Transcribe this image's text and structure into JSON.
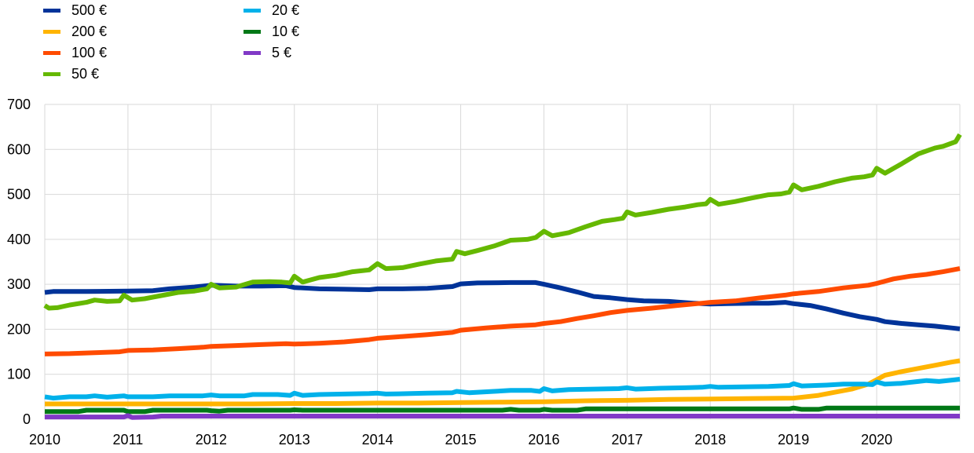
{
  "chart_data": {
    "type": "line",
    "title": "",
    "xlabel": "",
    "ylabel": "",
    "xlim": [
      2010,
      2021.0
    ],
    "ylim": [
      0,
      700
    ],
    "yticks": [
      0,
      100,
      200,
      300,
      400,
      500,
      600,
      700
    ],
    "xticks": [
      "2010",
      "2011",
      "2012",
      "2013",
      "2014",
      "2015",
      "2016",
      "2017",
      "2018",
      "2019",
      "2020"
    ],
    "grid": true,
    "legend_position": "top-left",
    "series": [
      {
        "name": "500 €",
        "color": "#003399",
        "points": [
          [
            2010.0,
            282
          ],
          [
            2010.1,
            284
          ],
          [
            2010.5,
            284
          ],
          [
            2011.0,
            285
          ],
          [
            2011.3,
            286
          ],
          [
            2011.5,
            290
          ],
          [
            2011.8,
            294
          ],
          [
            2012.0,
            298
          ],
          [
            2012.3,
            296
          ],
          [
            2012.6,
            296
          ],
          [
            2012.9,
            297
          ],
          [
            2013.0,
            293
          ],
          [
            2013.3,
            290
          ],
          [
            2013.6,
            289
          ],
          [
            2013.9,
            288
          ],
          [
            2014.0,
            290
          ],
          [
            2014.3,
            290
          ],
          [
            2014.6,
            291
          ],
          [
            2014.9,
            295
          ],
          [
            2015.0,
            301
          ],
          [
            2015.2,
            303
          ],
          [
            2015.6,
            304
          ],
          [
            2015.9,
            304
          ],
          [
            2016.0,
            300
          ],
          [
            2016.2,
            292
          ],
          [
            2016.4,
            283
          ],
          [
            2016.6,
            273
          ],
          [
            2016.8,
            270
          ],
          [
            2017.0,
            266
          ],
          [
            2017.2,
            263
          ],
          [
            2017.5,
            262
          ],
          [
            2017.8,
            258
          ],
          [
            2018.0,
            256
          ],
          [
            2018.2,
            257
          ],
          [
            2018.5,
            258
          ],
          [
            2018.7,
            258
          ],
          [
            2018.9,
            260
          ],
          [
            2019.0,
            257
          ],
          [
            2019.2,
            253
          ],
          [
            2019.4,
            245
          ],
          [
            2019.6,
            236
          ],
          [
            2019.8,
            228
          ],
          [
            2020.0,
            222
          ],
          [
            2020.1,
            217
          ],
          [
            2020.3,
            213
          ],
          [
            2020.5,
            210
          ],
          [
            2020.7,
            207
          ],
          [
            2020.9,
            203
          ],
          [
            2021.0,
            201
          ]
        ]
      },
      {
        "name": "200 €",
        "color": "#FFB400",
        "points": [
          [
            2010.0,
            34
          ],
          [
            2010.5,
            34
          ],
          [
            2011.0,
            34
          ],
          [
            2011.5,
            34
          ],
          [
            2012.0,
            34
          ],
          [
            2012.5,
            34
          ],
          [
            2013.0,
            35
          ],
          [
            2013.5,
            35
          ],
          [
            2014.0,
            36
          ],
          [
            2014.5,
            36
          ],
          [
            2015.0,
            37
          ],
          [
            2015.5,
            38
          ],
          [
            2016.0,
            39
          ],
          [
            2016.5,
            41
          ],
          [
            2017.0,
            42
          ],
          [
            2017.5,
            44
          ],
          [
            2018.0,
            45
          ],
          [
            2018.5,
            46
          ],
          [
            2019.0,
            47
          ],
          [
            2019.3,
            53
          ],
          [
            2019.5,
            60
          ],
          [
            2019.7,
            67
          ],
          [
            2019.9,
            78
          ],
          [
            2020.0,
            88
          ],
          [
            2020.1,
            98
          ],
          [
            2020.3,
            106
          ],
          [
            2020.5,
            113
          ],
          [
            2020.7,
            120
          ],
          [
            2020.9,
            127
          ],
          [
            2021.0,
            130
          ]
        ]
      },
      {
        "name": "100 €",
        "color": "#FF4B00",
        "points": [
          [
            2010.0,
            145
          ],
          [
            2010.3,
            146
          ],
          [
            2010.6,
            148
          ],
          [
            2010.9,
            150
          ],
          [
            2011.0,
            153
          ],
          [
            2011.3,
            154
          ],
          [
            2011.6,
            157
          ],
          [
            2011.9,
            160
          ],
          [
            2012.0,
            162
          ],
          [
            2012.3,
            164
          ],
          [
            2012.6,
            166
          ],
          [
            2012.9,
            168
          ],
          [
            2013.0,
            167
          ],
          [
            2013.3,
            169
          ],
          [
            2013.6,
            172
          ],
          [
            2013.9,
            177
          ],
          [
            2014.0,
            180
          ],
          [
            2014.3,
            184
          ],
          [
            2014.6,
            188
          ],
          [
            2014.9,
            193
          ],
          [
            2015.0,
            198
          ],
          [
            2015.3,
            203
          ],
          [
            2015.6,
            207
          ],
          [
            2015.9,
            210
          ],
          [
            2016.0,
            213
          ],
          [
            2016.2,
            217
          ],
          [
            2016.4,
            224
          ],
          [
            2016.6,
            230
          ],
          [
            2016.8,
            237
          ],
          [
            2017.0,
            242
          ],
          [
            2017.3,
            247
          ],
          [
            2017.6,
            253
          ],
          [
            2017.9,
            258
          ],
          [
            2018.0,
            260
          ],
          [
            2018.3,
            263
          ],
          [
            2018.6,
            270
          ],
          [
            2018.9,
            276
          ],
          [
            2019.0,
            279
          ],
          [
            2019.3,
            284
          ],
          [
            2019.6,
            292
          ],
          [
            2019.9,
            298
          ],
          [
            2020.0,
            302
          ],
          [
            2020.2,
            312
          ],
          [
            2020.4,
            318
          ],
          [
            2020.6,
            322
          ],
          [
            2020.8,
            328
          ],
          [
            2021.0,
            335
          ]
        ]
      },
      {
        "name": "50 €",
        "color": "#65B800",
        "points": [
          [
            2010.0,
            253
          ],
          [
            2010.05,
            247
          ],
          [
            2010.15,
            248
          ],
          [
            2010.3,
            254
          ],
          [
            2010.5,
            260
          ],
          [
            2010.6,
            265
          ],
          [
            2010.75,
            262
          ],
          [
            2010.9,
            263
          ],
          [
            2010.95,
            276
          ],
          [
            2011.05,
            265
          ],
          [
            2011.2,
            268
          ],
          [
            2011.4,
            275
          ],
          [
            2011.6,
            282
          ],
          [
            2011.8,
            285
          ],
          [
            2011.95,
            290
          ],
          [
            2012.0,
            300
          ],
          [
            2012.1,
            292
          ],
          [
            2012.3,
            294
          ],
          [
            2012.5,
            305
          ],
          [
            2012.7,
            306
          ],
          [
            2012.85,
            305
          ],
          [
            2012.95,
            303
          ],
          [
            2013.0,
            318
          ],
          [
            2013.1,
            305
          ],
          [
            2013.3,
            315
          ],
          [
            2013.5,
            320
          ],
          [
            2013.7,
            328
          ],
          [
            2013.9,
            332
          ],
          [
            2014.0,
            346
          ],
          [
            2014.1,
            335
          ],
          [
            2014.3,
            337
          ],
          [
            2014.5,
            345
          ],
          [
            2014.7,
            352
          ],
          [
            2014.9,
            356
          ],
          [
            2014.95,
            373
          ],
          [
            2015.05,
            368
          ],
          [
            2015.2,
            375
          ],
          [
            2015.4,
            385
          ],
          [
            2015.6,
            398
          ],
          [
            2015.8,
            400
          ],
          [
            2015.9,
            404
          ],
          [
            2016.0,
            418
          ],
          [
            2016.1,
            408
          ],
          [
            2016.3,
            415
          ],
          [
            2016.5,
            428
          ],
          [
            2016.7,
            440
          ],
          [
            2016.85,
            444
          ],
          [
            2016.95,
            447
          ],
          [
            2017.0,
            461
          ],
          [
            2017.1,
            454
          ],
          [
            2017.3,
            460
          ],
          [
            2017.5,
            467
          ],
          [
            2017.7,
            472
          ],
          [
            2017.85,
            477
          ],
          [
            2017.95,
            479
          ],
          [
            2018.0,
            489
          ],
          [
            2018.1,
            478
          ],
          [
            2018.3,
            484
          ],
          [
            2018.5,
            492
          ],
          [
            2018.7,
            499
          ],
          [
            2018.85,
            501
          ],
          [
            2018.95,
            505
          ],
          [
            2019.0,
            521
          ],
          [
            2019.1,
            510
          ],
          [
            2019.3,
            518
          ],
          [
            2019.5,
            528
          ],
          [
            2019.7,
            536
          ],
          [
            2019.85,
            539
          ],
          [
            2019.95,
            543
          ],
          [
            2020.0,
            558
          ],
          [
            2020.1,
            547
          ],
          [
            2020.3,
            568
          ],
          [
            2020.5,
            590
          ],
          [
            2020.7,
            603
          ],
          [
            2020.8,
            607
          ],
          [
            2020.95,
            617
          ],
          [
            2021.0,
            633
          ]
        ]
      },
      {
        "name": "20 €",
        "color": "#00B1EA",
        "points": [
          [
            2010.0,
            50
          ],
          [
            2010.1,
            47
          ],
          [
            2010.3,
            50
          ],
          [
            2010.5,
            50
          ],
          [
            2010.6,
            52
          ],
          [
            2010.75,
            49
          ],
          [
            2010.95,
            52
          ],
          [
            2011.0,
            50
          ],
          [
            2011.3,
            50
          ],
          [
            2011.5,
            52
          ],
          [
            2011.9,
            52
          ],
          [
            2012.0,
            54
          ],
          [
            2012.1,
            52
          ],
          [
            2012.4,
            52
          ],
          [
            2012.5,
            55
          ],
          [
            2012.8,
            55
          ],
          [
            2012.95,
            53
          ],
          [
            2013.0,
            58
          ],
          [
            2013.1,
            53
          ],
          [
            2013.3,
            55
          ],
          [
            2013.6,
            56
          ],
          [
            2013.9,
            57
          ],
          [
            2014.0,
            58
          ],
          [
            2014.1,
            56
          ],
          [
            2014.4,
            57
          ],
          [
            2014.6,
            58
          ],
          [
            2014.9,
            59
          ],
          [
            2014.95,
            62
          ],
          [
            2015.1,
            59
          ],
          [
            2015.4,
            62
          ],
          [
            2015.6,
            64
          ],
          [
            2015.85,
            64
          ],
          [
            2015.95,
            62
          ],
          [
            2016.0,
            68
          ],
          [
            2016.1,
            63
          ],
          [
            2016.3,
            66
          ],
          [
            2016.6,
            67
          ],
          [
            2016.9,
            68
          ],
          [
            2017.0,
            70
          ],
          [
            2017.1,
            67
          ],
          [
            2017.4,
            69
          ],
          [
            2017.7,
            70
          ],
          [
            2017.9,
            71
          ],
          [
            2018.0,
            73
          ],
          [
            2018.1,
            71
          ],
          [
            2018.4,
            72
          ],
          [
            2018.7,
            73
          ],
          [
            2018.95,
            75
          ],
          [
            2019.0,
            79
          ],
          [
            2019.1,
            74
          ],
          [
            2019.4,
            76
          ],
          [
            2019.6,
            78
          ],
          [
            2019.85,
            78
          ],
          [
            2019.95,
            77
          ],
          [
            2020.0,
            83
          ],
          [
            2020.1,
            78
          ],
          [
            2020.3,
            80
          ],
          [
            2020.5,
            84
          ],
          [
            2020.6,
            86
          ],
          [
            2020.75,
            84
          ],
          [
            2020.95,
            88
          ],
          [
            2021.0,
            89
          ]
        ]
      },
      {
        "name": "10 €",
        "color": "#007816",
        "points": [
          [
            2010.0,
            17
          ],
          [
            2010.4,
            17
          ],
          [
            2010.5,
            20
          ],
          [
            2010.95,
            20
          ],
          [
            2011.0,
            17
          ],
          [
            2011.2,
            17
          ],
          [
            2011.3,
            20
          ],
          [
            2011.95,
            20
          ],
          [
            2012.0,
            19
          ],
          [
            2012.1,
            18
          ],
          [
            2012.2,
            20
          ],
          [
            2012.95,
            20
          ],
          [
            2013.0,
            21
          ],
          [
            2013.1,
            20
          ],
          [
            2015.5,
            20
          ],
          [
            2015.6,
            22
          ],
          [
            2015.7,
            20
          ],
          [
            2015.95,
            20
          ],
          [
            2016.0,
            22
          ],
          [
            2016.1,
            20
          ],
          [
            2016.4,
            20
          ],
          [
            2016.5,
            23
          ],
          [
            2018.95,
            23
          ],
          [
            2019.0,
            25
          ],
          [
            2019.1,
            22
          ],
          [
            2019.3,
            22
          ],
          [
            2019.4,
            25
          ],
          [
            2021.0,
            25
          ]
        ]
      },
      {
        "name": "5 €",
        "color": "#8139C6",
        "points": [
          [
            2010.0,
            5
          ],
          [
            2010.95,
            5
          ],
          [
            2011.0,
            8
          ],
          [
            2011.05,
            4
          ],
          [
            2011.3,
            5
          ],
          [
            2011.4,
            7
          ],
          [
            2021.0,
            7
          ]
        ]
      }
    ]
  },
  "legend": [
    {
      "label": "500 €",
      "color": "#003399"
    },
    {
      "label": "200 €",
      "color": "#FFB400"
    },
    {
      "label": "100 €",
      "color": "#FF4B00"
    },
    {
      "label": "50 €",
      "color": "#65B800"
    },
    {
      "label": "20 €",
      "color": "#00B1EA"
    },
    {
      "label": "10 €",
      "color": "#007816"
    },
    {
      "label": "5 €",
      "color": "#8139C6"
    }
  ]
}
